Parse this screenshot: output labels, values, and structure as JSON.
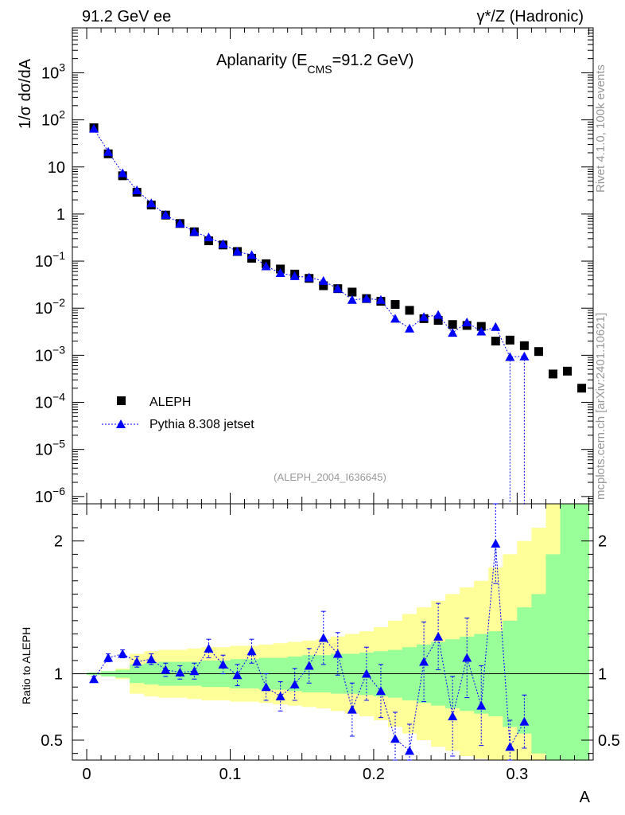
{
  "header": {
    "left_label": "91.2 GeV ee",
    "right_label": "γ*/Z (Hadronic)"
  },
  "side_text": {
    "rivet": "Rivet 4.1.0,  100k events",
    "mcplots": "mcplots.cern.ch [arXiv:2401.10621]"
  },
  "chart_data": {
    "type": "scatter",
    "title": "Aplanarity (E",
    "title_sub": "CMS",
    "title_tail": "=91.2 GeV)",
    "xlabel": "A",
    "ylabel": "1/σ  dσ/dA",
    "ratio_ylabel": "Ratio to ALEPH",
    "analysis_tag": "(ALEPH_2004_I636645)",
    "xlim": [
      -0.01,
      0.353
    ],
    "ylim_log": [
      7e-07,
      9000
    ],
    "ratio_ylim": [
      0.35,
      2.28
    ],
    "x_ticks": [
      {
        "v": 0,
        "label": "0"
      },
      {
        "v": 0.1,
        "label": "0.1"
      },
      {
        "v": 0.2,
        "label": "0.2"
      },
      {
        "v": 0.3,
        "label": "0.3"
      }
    ],
    "y_ticks": [
      {
        "v": 1000,
        "base": "10",
        "exp": "3"
      },
      {
        "v": 100,
        "base": "10",
        "exp": "2"
      },
      {
        "v": 10,
        "base": "10",
        "exp": ""
      },
      {
        "v": 1,
        "base": "1",
        "exp": ""
      },
      {
        "v": 0.1,
        "base": "10",
        "exp": "−1"
      },
      {
        "v": 0.01,
        "base": "10",
        "exp": "−2"
      },
      {
        "v": 0.001,
        "base": "10",
        "exp": "−3"
      },
      {
        "v": 0.0001,
        "base": "10",
        "exp": "−4"
      },
      {
        "v": 1e-05,
        "base": "10",
        "exp": "−5"
      },
      {
        "v": 1e-06,
        "base": "10",
        "exp": "−6"
      }
    ],
    "ratio_ticks": [
      {
        "v": 0.5,
        "label": "0.5"
      },
      {
        "v": 1,
        "label": "1"
      },
      {
        "v": 2,
        "label": "2"
      }
    ],
    "x": [
      0.005,
      0.015,
      0.025,
      0.035,
      0.045,
      0.055,
      0.065,
      0.075,
      0.085,
      0.095,
      0.105,
      0.115,
      0.125,
      0.135,
      0.145,
      0.155,
      0.165,
      0.175,
      0.185,
      0.195,
      0.205,
      0.215,
      0.225,
      0.235,
      0.245,
      0.255,
      0.265,
      0.275,
      0.285,
      0.295,
      0.305,
      0.315,
      0.325,
      0.335,
      0.345
    ],
    "series": [
      {
        "name": "ALEPH",
        "marker": "square",
        "color": "#000000",
        "values": [
          68,
          19,
          6.5,
          2.9,
          1.55,
          0.95,
          0.63,
          0.42,
          0.27,
          0.22,
          0.16,
          0.115,
          0.088,
          0.068,
          0.053,
          0.043,
          0.03,
          0.026,
          0.022,
          0.016,
          0.014,
          0.012,
          0.009,
          0.006,
          0.0055,
          0.0045,
          0.0043,
          0.0041,
          0.002,
          0.0021,
          0.0016,
          0.0012,
          0.0004,
          0.00046,
          0.0002
        ]
      },
      {
        "name": "Pythia 8.308 jetset",
        "marker": "triangle",
        "color": "#0000ff",
        "values": [
          65,
          21,
          7.4,
          3.2,
          1.7,
          0.96,
          0.63,
          0.42,
          0.32,
          0.23,
          0.16,
          0.135,
          0.078,
          0.056,
          0.048,
          0.045,
          0.038,
          0.026,
          0.015,
          0.016,
          0.015,
          0.006,
          0.0037,
          0.0065,
          0.0072,
          0.003,
          0.005,
          0.0032,
          0.004,
          0.00092,
          0.00095
        ],
        "ratio": [
          0.96,
          1.12,
          1.15,
          1.09,
          1.11,
          1.03,
          1.01,
          1.02,
          1.19,
          1.07,
          0.99,
          1.17,
          0.9,
          0.83,
          0.92,
          1.06,
          1.27,
          1.15,
          0.73,
          1.0,
          0.87,
          0.51,
          0.42,
          1.09,
          1.28,
          0.68,
          1.12,
          0.76,
          1.98,
          0.45,
          0.64
        ],
        "ratio_err": [
          0.02,
          0.03,
          0.03,
          0.04,
          0.04,
          0.05,
          0.05,
          0.06,
          0.07,
          0.07,
          0.08,
          0.09,
          0.1,
          0.11,
          0.12,
          0.13,
          0.2,
          0.16,
          0.2,
          0.2,
          0.2,
          0.2,
          0.2,
          0.3,
          0.25,
          0.3,
          0.3,
          0.3,
          0.3,
          0.2,
          0.2
        ]
      }
    ],
    "bands": {
      "x_edges": [
        0.0,
        0.01,
        0.02,
        0.03,
        0.04,
        0.05,
        0.06,
        0.07,
        0.08,
        0.09,
        0.1,
        0.11,
        0.12,
        0.13,
        0.14,
        0.15,
        0.16,
        0.17,
        0.18,
        0.19,
        0.2,
        0.21,
        0.22,
        0.23,
        0.24,
        0.25,
        0.26,
        0.27,
        0.28,
        0.29,
        0.3,
        0.31,
        0.32,
        0.33,
        0.34,
        0.35
      ],
      "green_lo": [
        0.99,
        0.98,
        0.97,
        0.93,
        0.92,
        0.91,
        0.91,
        0.91,
        0.9,
        0.9,
        0.89,
        0.89,
        0.88,
        0.88,
        0.87,
        0.86,
        0.86,
        0.85,
        0.85,
        0.84,
        0.83,
        0.82,
        0.8,
        0.78,
        0.76,
        0.74,
        0.72,
        0.7,
        0.68,
        0.6,
        0.55,
        0.4,
        0.35,
        0.35,
        0.35
      ],
      "green_hi": [
        1.01,
        1.02,
        1.03,
        1.07,
        1.08,
        1.09,
        1.09,
        1.09,
        1.1,
        1.1,
        1.11,
        1.11,
        1.12,
        1.12,
        1.13,
        1.14,
        1.14,
        1.15,
        1.15,
        1.16,
        1.17,
        1.18,
        1.2,
        1.22,
        1.24,
        1.26,
        1.28,
        1.3,
        1.32,
        1.4,
        1.5,
        1.6,
        1.9,
        2.28,
        2.28
      ],
      "yellow_lo": [
        0.99,
        0.98,
        0.96,
        0.85,
        0.83,
        0.82,
        0.82,
        0.81,
        0.8,
        0.8,
        0.79,
        0.79,
        0.78,
        0.77,
        0.76,
        0.75,
        0.74,
        0.72,
        0.7,
        0.68,
        0.65,
        0.6,
        0.55,
        0.5,
        0.45,
        0.42,
        0.38,
        0.36,
        0.35,
        0.35,
        0.35,
        0.35,
        0.35,
        0.35,
        0.35
      ],
      "yellow_hi": [
        1.01,
        1.02,
        1.04,
        1.15,
        1.17,
        1.18,
        1.18,
        1.19,
        1.2,
        1.2,
        1.21,
        1.21,
        1.22,
        1.23,
        1.24,
        1.25,
        1.26,
        1.28,
        1.3,
        1.32,
        1.35,
        1.4,
        1.45,
        1.5,
        1.55,
        1.6,
        1.65,
        1.7,
        1.8,
        1.9,
        2.0,
        2.1,
        2.28,
        2.28,
        2.28
      ],
      "green_color": "#99ff99",
      "yellow_color": "#ffff99"
    }
  }
}
